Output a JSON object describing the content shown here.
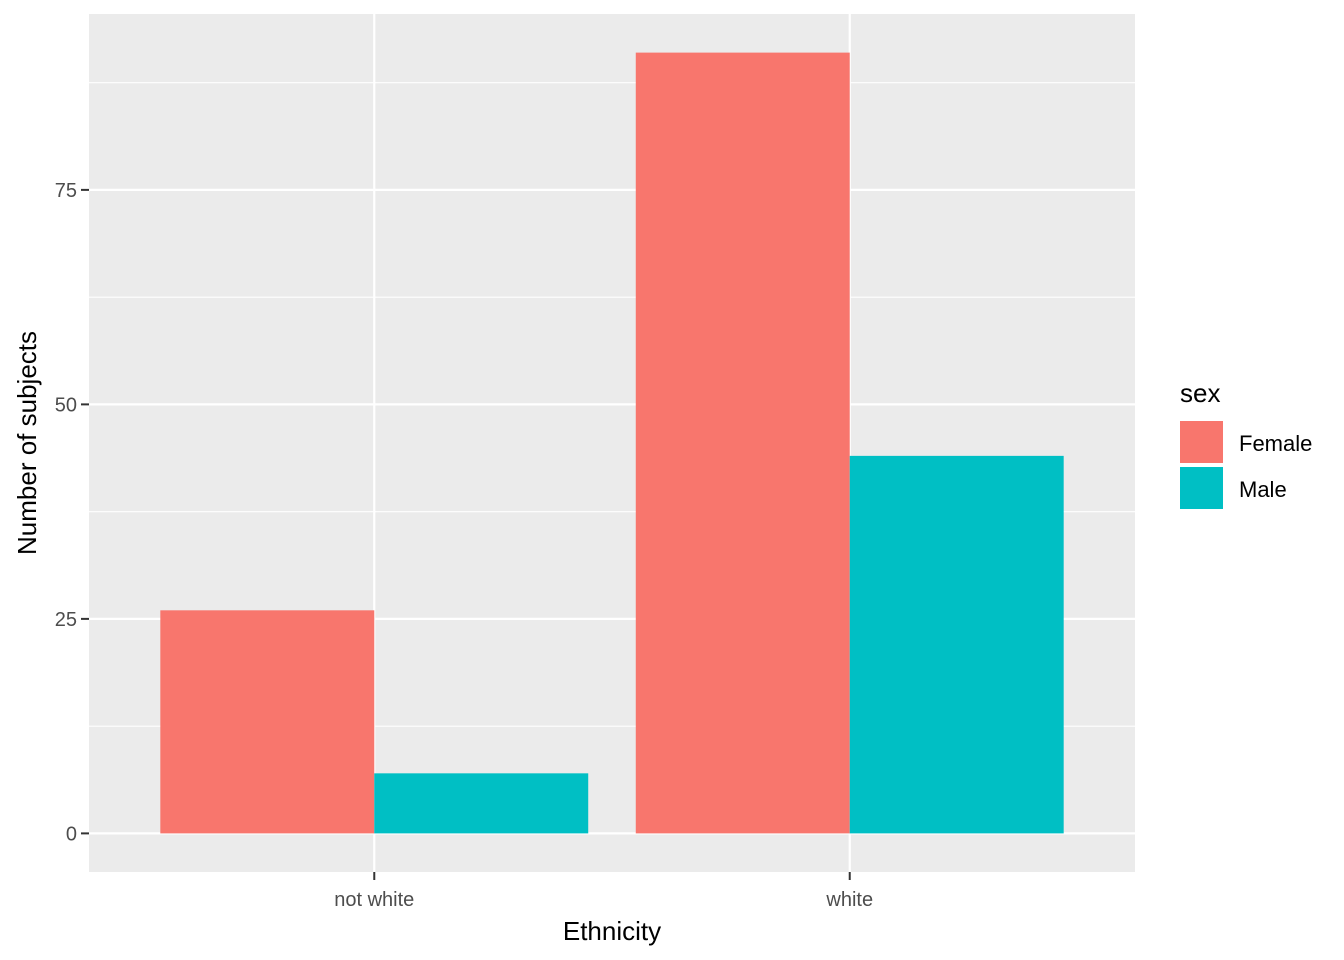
{
  "chart_data": {
    "type": "bar",
    "categories": [
      "not white",
      "white"
    ],
    "series": [
      {
        "name": "Female",
        "values": [
          26,
          91
        ],
        "color": "#F8766D"
      },
      {
        "name": "Male",
        "values": [
          7,
          44
        ],
        "color": "#00BFC4"
      }
    ],
    "xlabel": "Ethnicity",
    "ylabel": "Number of subjects",
    "ylim": [
      -4.5,
      95.5
    ],
    "yticks": [
      0,
      25,
      50,
      75
    ],
    "ytick_labels": [
      "0",
      "25",
      "50",
      "75"
    ],
    "grid": true,
    "legend": {
      "title": "sex",
      "position": "right"
    },
    "panel_background": "#EBEBEB",
    "grid_color": "#FFFFFF"
  }
}
